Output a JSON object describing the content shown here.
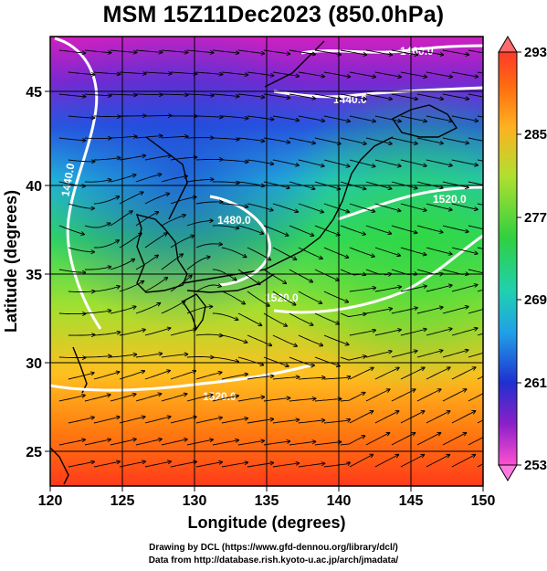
{
  "title": "MSM 15Z11Dec2023 (850.0hPa)",
  "x_axis": {
    "label": "Longitude (degrees)",
    "ticks": [
      "120",
      "125",
      "130",
      "135",
      "140",
      "145",
      "150"
    ],
    "range": [
      120,
      150
    ]
  },
  "y_axis": {
    "label": "Latitude  (degrees)",
    "ticks": [
      "25",
      "30",
      "35",
      "40",
      "45"
    ],
    "range": [
      22.4,
      47.6
    ]
  },
  "colorbar": {
    "ticks": [
      "293",
      "285",
      "277",
      "269",
      "261",
      "253"
    ],
    "range": [
      253,
      293
    ],
    "colors": [
      "#ff3f6f",
      "#ff4a2a",
      "#ff7a1a",
      "#ffb020",
      "#e6e020",
      "#9ae63a",
      "#3ad84a",
      "#20d0a0",
      "#20b0e0",
      "#2060e0",
      "#3a30c8",
      "#8a20c8",
      "#c820c0",
      "#ff50d0"
    ]
  },
  "contours": [
    {
      "label": "1400.0"
    },
    {
      "label": "1440.0"
    },
    {
      "label": "1440.0"
    },
    {
      "label": "1480.0"
    },
    {
      "label": "1520.0"
    },
    {
      "label": "1520.0"
    },
    {
      "label": "1520.0"
    }
  ],
  "credits": [
    "Drawing by DCL (https://www.gfd-dennou.org/library/dcl/)",
    "Data from http://database.rish.kyoto-u.ac.jp/arch/jmadata/"
  ]
}
